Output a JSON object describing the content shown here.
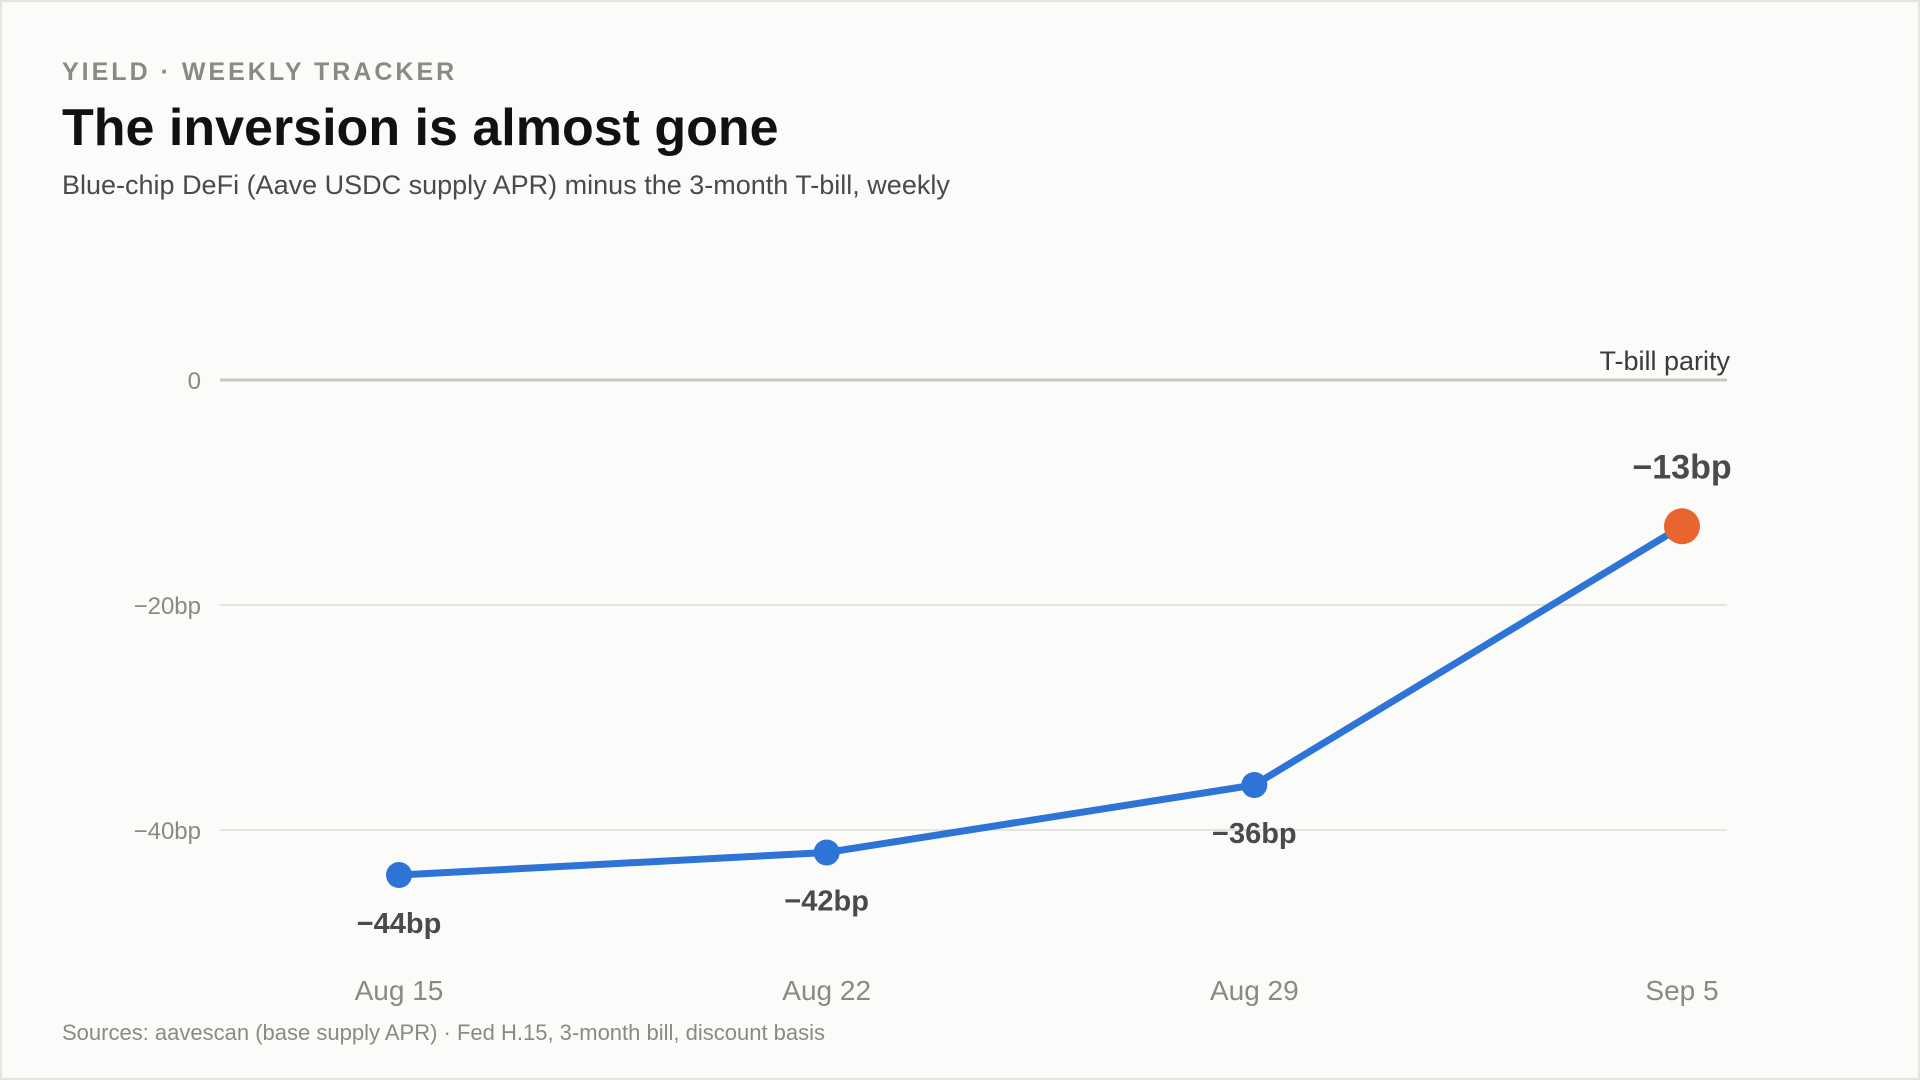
{
  "header": {
    "kicker": "YIELD · WEEKLY TRACKER",
    "title": "The inversion is almost gone",
    "subtitle": "Blue-chip DeFi (Aave USDC supply APR) minus the 3-month T-bill, weekly"
  },
  "footer": {
    "source": "Sources: aavescan (base supply APR) · Fed H.15, 3-month bill, discount basis"
  },
  "colors": {
    "line": "#2e74d6",
    "highlight": "#e8652f",
    "gridline": "#dcdcd8",
    "reference": "#c8c8c0",
    "label": "#4a4a4a"
  },
  "chart_data": {
    "type": "line",
    "categories": [
      "Aug 15",
      "Aug 22",
      "Aug 29",
      "Sep 5"
    ],
    "series": [
      {
        "values": [
          -44,
          -42,
          -36,
          -13
        ]
      }
    ],
    "data_labels": [
      "−44bp",
      "−42bp",
      "−36bp",
      "−13bp"
    ],
    "highlight_index": 3,
    "y_ticks": [
      {
        "value": 0,
        "label": "0"
      },
      {
        "value": -20,
        "label": "−20bp"
      },
      {
        "value": -40,
        "label": "−40bp"
      }
    ],
    "reference_line": {
      "value": 0,
      "label": "T-bill parity"
    },
    "ylim": [
      -53,
      0
    ],
    "grid": true
  }
}
